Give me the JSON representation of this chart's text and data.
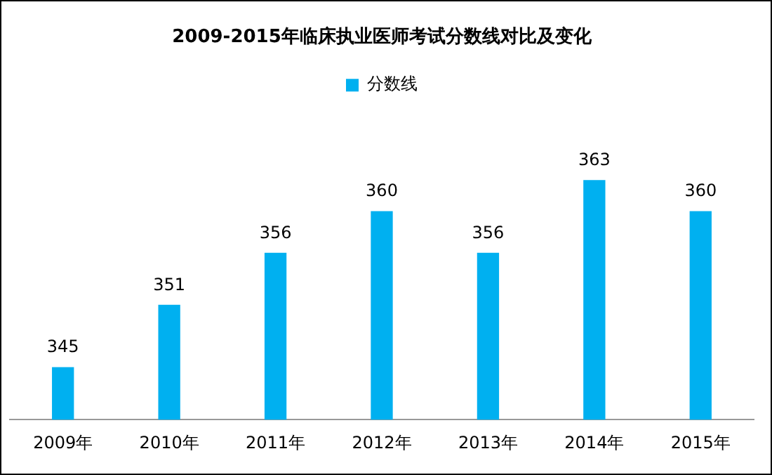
{
  "chart_data": {
    "type": "bar",
    "title": "2009-2015年临床执业医师考试分数线对比及变化",
    "categories": [
      "2009年",
      "2010年",
      "2011年",
      "2012年",
      "2013年",
      "2014年",
      "2015年"
    ],
    "series": [
      {
        "name": "分数线",
        "color": "#00b0f0",
        "values": [
          345,
          351,
          356,
          360,
          356,
          363,
          360
        ]
      }
    ],
    "data_labels": true,
    "legend": "top",
    "grid": false
  }
}
